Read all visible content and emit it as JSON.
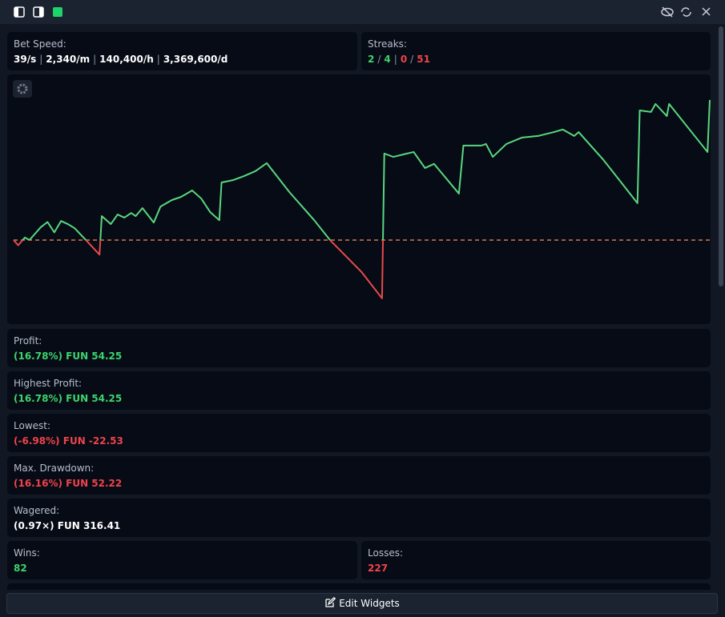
{
  "stats": {
    "bet_speed": {
      "label": "Bet Speed:",
      "values": [
        "39/s",
        "2,340/m",
        "140,400/h",
        "3,369,600/d"
      ]
    },
    "streaks": {
      "label": "Streaks:",
      "values": [
        "2",
        "4",
        "0",
        "51"
      ]
    },
    "profit": {
      "label": "Profit:",
      "value": "(16.78%) FUN 54.25"
    },
    "highest_profit": {
      "label": "Highest Profit:",
      "value": "(16.78%) FUN 54.25"
    },
    "lowest": {
      "label": "Lowest:",
      "value": "(-6.98%) FUN -22.53"
    },
    "max_drawdown": {
      "label": "Max. Drawdown:",
      "value": "(16.16%) FUN 52.22"
    },
    "wagered": {
      "label": "Wagered:",
      "value": "(0.97×) FUN 316.41"
    },
    "wins": {
      "label": "Wins:",
      "value": "82"
    },
    "losses": {
      "label": "Losses:",
      "value": "227"
    }
  },
  "edit_button": "Edit Widgets",
  "chart_data": {
    "type": "line",
    "x": [
      0,
      2,
      5,
      7,
      10,
      12,
      15,
      18,
      21,
      24,
      27,
      32,
      38,
      39,
      43,
      46,
      49,
      52,
      54,
      57,
      62,
      65,
      70,
      74,
      79,
      83,
      87,
      91,
      92,
      97,
      102,
      107,
      112,
      122,
      133,
      140,
      154,
      163,
      164,
      168,
      174,
      177,
      182,
      186,
      197,
      199,
      207,
      209,
      212,
      218,
      225,
      232,
      239,
      243,
      248,
      250,
      261,
      276,
      277,
      282,
      284,
      289,
      290,
      307,
      308
    ],
    "series": [
      {
        "color": "#5ad67d",
        "negative_color": "#e84a4a",
        "values": [
          0,
          -2,
          1,
          0,
          3,
          5,
          7,
          3,
          7.4,
          6.2,
          4.6,
          0,
          -5.6,
          9.3,
          6.2,
          9.9,
          8.7,
          10.5,
          9.3,
          12.4,
          6.8,
          13,
          15.5,
          16.7,
          19.2,
          16.1,
          10.8,
          7.7,
          22.3,
          23.2,
          24.8,
          26.7,
          29.8,
          18.6,
          7.7,
          0,
          -12.4,
          -22.53,
          33.5,
          32.2,
          33.5,
          34.1,
          27.9,
          29.5,
          18,
          36.6,
          36.6,
          37.2,
          32.2,
          37.2,
          39.7,
          40.3,
          41.8,
          42.8,
          40.3,
          41.8,
          31,
          14.3,
          50.2,
          49.6,
          52.7,
          48,
          52.7,
          34.1,
          54.25
        ]
      }
    ],
    "xlim": [
      0,
      308
    ],
    "ylim": [
      -32.5,
      63.5
    ],
    "baseline": 0,
    "baseline_color": "#d47a4a"
  }
}
